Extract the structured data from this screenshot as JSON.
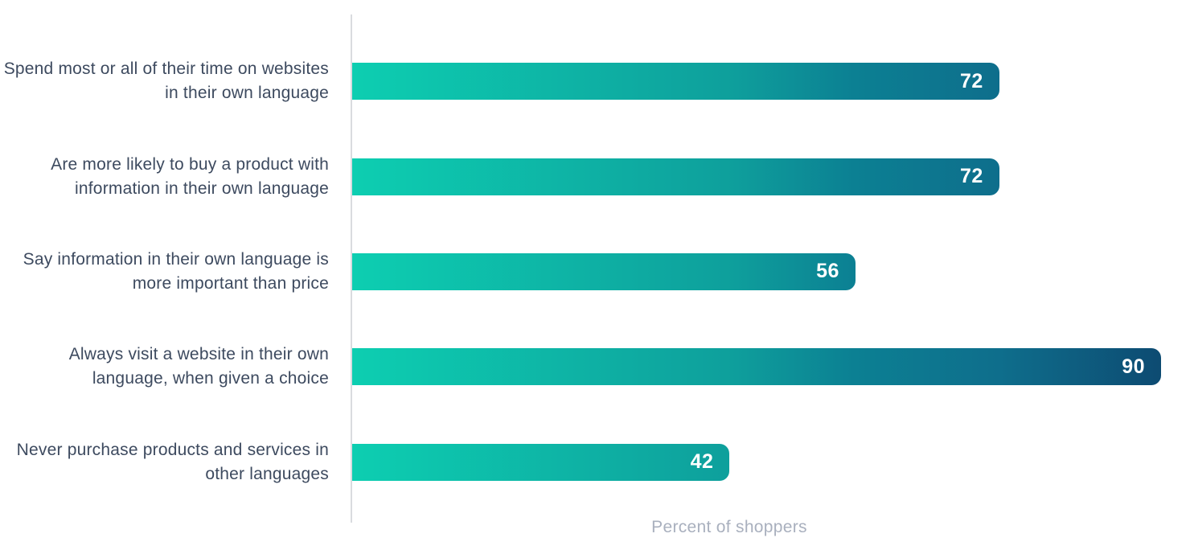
{
  "chart_data": {
    "type": "bar",
    "orientation": "horizontal",
    "categories": [
      "Spend most or all of their time on websites in their own language",
      "Are more likely to buy a product with information in their own language",
      "Say information in their own language is more important than price",
      "Always visit a website in their own language, when given a choice",
      "Never purchase products and services in other languages"
    ],
    "values": [
      72,
      72,
      56,
      90,
      42
    ],
    "title": "",
    "xlabel": "Percent of shoppers",
    "ylabel": "",
    "xlim": [
      0,
      90
    ],
    "grid": false,
    "legend": false,
    "value_labels_inside_bars": true,
    "gradient_span_value": 90,
    "bar_gradient_stops": [
      {
        "pos": 0,
        "color": "#0dceb1"
      },
      {
        "pos": 47,
        "color": "#0e9f9c"
      },
      {
        "pos": 62,
        "color": "#0c8093"
      },
      {
        "pos": 80,
        "color": "#0e6e8c"
      },
      {
        "pos": 100,
        "color": "#0d4b72"
      }
    ],
    "colors": {
      "category_label": "#3d4a5f",
      "value_label": "#ffffff",
      "axis_line": "#d9dbdf",
      "xlabel": "#a9b0be",
      "background": "#ffffff"
    }
  }
}
